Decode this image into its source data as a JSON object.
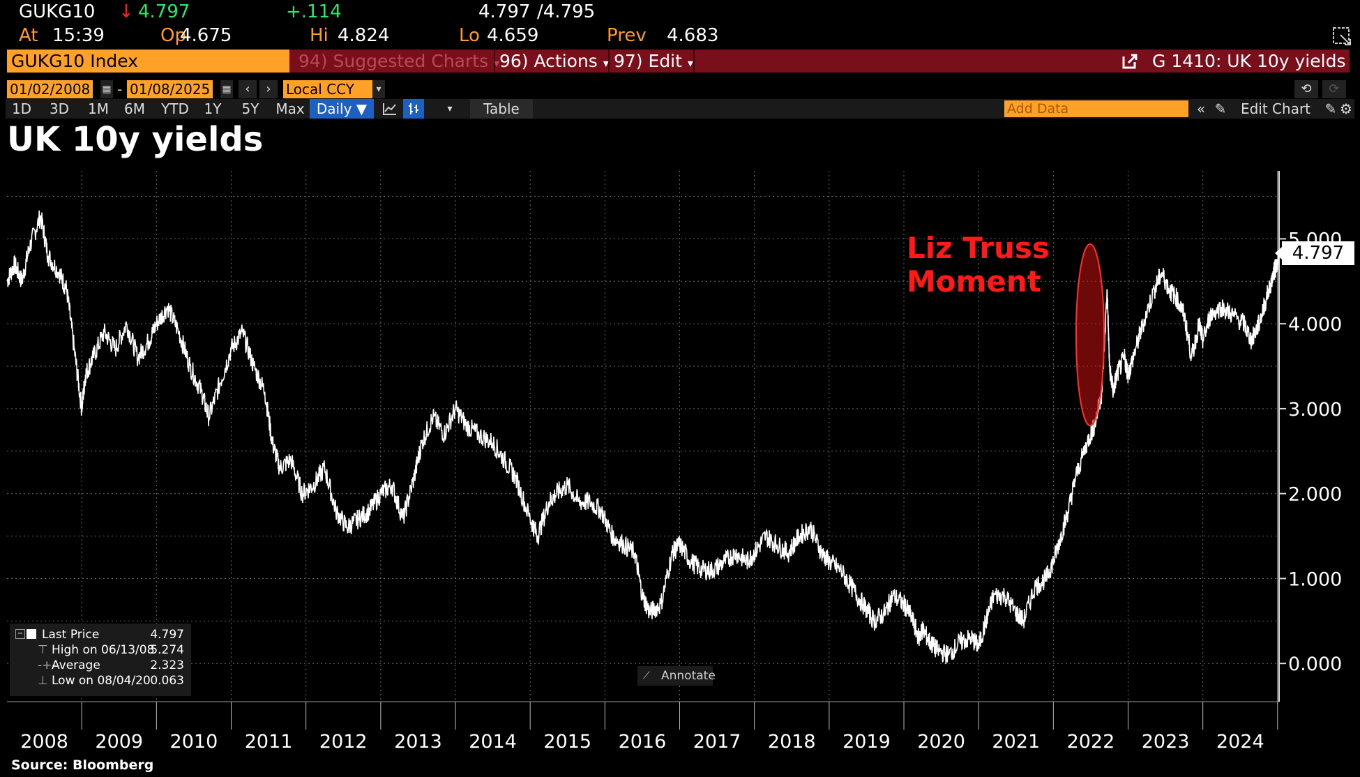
{
  "quote": {
    "ticker": "GUKG10",
    "arrow": "↓",
    "last": "4.797",
    "change": "+.114",
    "bid": "4.797",
    "ask": "/4.795",
    "at_label": "At",
    "at_value": "15:39",
    "op_label": "Op",
    "op_value": "4.675",
    "hi_label": "Hi",
    "hi_value": "4.824",
    "lo_label": "Lo",
    "lo_value": "4.659",
    "prev_label": "Prev",
    "prev_value": "4.683"
  },
  "menubar": {
    "security": "GUKG10 Index",
    "suggested": "94) Suggested Charts",
    "actions": "96) Actions",
    "edit": "97) Edit",
    "chart_title": "G 1410: UK 10y yields"
  },
  "range": {
    "start": "01/02/2008",
    "dash": "-",
    "end": "01/08/2025",
    "currency": "Local CCY"
  },
  "toolbar": {
    "periods": [
      "1D",
      "3D",
      "1M",
      "6M",
      "YTD",
      "1Y",
      "5Y",
      "Max"
    ],
    "frequency": "Daily ▼",
    "table": "Table",
    "add_data_placeholder": "Add Data",
    "edit_chart": "Edit Chart"
  },
  "legend": {
    "last_label": "Last Price",
    "last_value": "4.797",
    "high_label": "High on 06/13/08",
    "high_value": "5.274",
    "avg_label": "Average",
    "avg_value": "2.323",
    "low_label": "Low on 08/04/20",
    "low_value": "0.063"
  },
  "annotate_label": "Annotate",
  "source": "Source:  Bloomberg",
  "colors": {
    "accent": "#ffa126",
    "bar": "#7a0f1c",
    "annotation": "#ff1a1a",
    "line": "#ffffff"
  },
  "chart_data": {
    "type": "line",
    "title": "UK 10y yields",
    "annotation": [
      "Liz Truss",
      "Moment"
    ],
    "last_value_label": "4.797",
    "ylim": [
      -0.45,
      5.8
    ],
    "yticks": [
      0,
      1,
      2,
      3,
      4,
      5
    ],
    "ytick_labels": [
      "0.000",
      "1.000",
      "2.000",
      "3.000",
      "4.000",
      "5.000"
    ],
    "xlim": [
      2008.0,
      2025.02
    ],
    "xtick_labels": [
      "2008",
      "2009",
      "2010",
      "2011",
      "2012",
      "2013",
      "2014",
      "2015",
      "2016",
      "2017",
      "2018",
      "2019",
      "2020",
      "2021",
      "2022",
      "2023",
      "2024"
    ],
    "grid": true,
    "series": [
      {
        "x": [
          2008.0,
          2008.1,
          2008.2,
          2008.3,
          2008.45,
          2008.55,
          2008.7,
          2008.8,
          2008.9,
          2009.0,
          2009.05,
          2009.15,
          2009.3,
          2009.45,
          2009.6,
          2009.75,
          2009.9,
          2010.0,
          2010.15,
          2010.3,
          2010.45,
          2010.6,
          2010.7,
          2010.85,
          2011.0,
          2011.15,
          2011.3,
          2011.45,
          2011.55,
          2011.65,
          2011.8,
          2011.95,
          2012.1,
          2012.25,
          2012.4,
          2012.55,
          2012.7,
          2012.85,
          2013.0,
          2013.15,
          2013.3,
          2013.45,
          2013.55,
          2013.7,
          2013.85,
          2014.0,
          2014.15,
          2014.3,
          2014.5,
          2014.65,
          2014.8,
          2015.0,
          2015.1,
          2015.25,
          2015.35,
          2015.5,
          2015.65,
          2015.8,
          2015.95,
          2016.1,
          2016.25,
          2016.4,
          2016.5,
          2016.6,
          2016.75,
          2016.9,
          2017.0,
          2017.15,
          2017.3,
          2017.45,
          2017.6,
          2017.75,
          2017.9,
          2018.0,
          2018.15,
          2018.3,
          2018.45,
          2018.6,
          2018.75,
          2018.9,
          2019.0,
          2019.15,
          2019.3,
          2019.45,
          2019.6,
          2019.75,
          2019.85,
          2020.0,
          2020.1,
          2020.2,
          2020.25,
          2020.35,
          2020.45,
          2020.6,
          2020.75,
          2020.9,
          2021.0,
          2021.1,
          2021.2,
          2021.35,
          2021.5,
          2021.6,
          2021.75,
          2021.9,
          2022.0,
          2022.1,
          2022.2,
          2022.3,
          2022.45,
          2022.55,
          2022.65,
          2022.72,
          2022.75,
          2022.8,
          2022.85,
          2022.95,
          2023.0,
          2023.1,
          2023.2,
          2023.35,
          2023.45,
          2023.55,
          2023.65,
          2023.75,
          2023.85,
          2023.95,
          2024.0,
          2024.1,
          2024.25,
          2024.4,
          2024.55,
          2024.65,
          2024.75,
          2024.85,
          2024.95,
          2025.02
        ],
        "y": [
          4.5,
          4.7,
          4.5,
          4.9,
          5.27,
          4.8,
          4.6,
          4.4,
          3.7,
          3.0,
          3.4,
          3.6,
          3.9,
          3.7,
          4.0,
          3.6,
          3.8,
          4.0,
          4.2,
          3.9,
          3.5,
          3.2,
          2.9,
          3.3,
          3.7,
          3.9,
          3.5,
          3.2,
          2.6,
          2.3,
          2.4,
          2.0,
          2.1,
          2.3,
          1.8,
          1.6,
          1.7,
          1.8,
          2.0,
          2.1,
          1.7,
          2.2,
          2.6,
          2.9,
          2.7,
          3.0,
          2.8,
          2.7,
          2.6,
          2.4,
          2.2,
          1.7,
          1.5,
          1.9,
          2.0,
          2.1,
          1.9,
          1.9,
          1.8,
          1.5,
          1.4,
          1.3,
          0.8,
          0.6,
          0.7,
          1.3,
          1.4,
          1.2,
          1.1,
          1.1,
          1.2,
          1.3,
          1.2,
          1.3,
          1.5,
          1.4,
          1.3,
          1.5,
          1.6,
          1.3,
          1.2,
          1.1,
          0.9,
          0.7,
          0.5,
          0.6,
          0.8,
          0.7,
          0.55,
          0.3,
          0.4,
          0.25,
          0.15,
          0.1,
          0.25,
          0.3,
          0.2,
          0.5,
          0.8,
          0.8,
          0.6,
          0.5,
          0.9,
          1.0,
          1.2,
          1.5,
          1.8,
          2.2,
          2.6,
          2.8,
          3.2,
          4.4,
          3.5,
          3.2,
          3.4,
          3.6,
          3.4,
          3.7,
          4.0,
          4.4,
          4.6,
          4.4,
          4.3,
          4.1,
          3.6,
          4.0,
          3.8,
          4.1,
          4.2,
          4.1,
          4.0,
          3.8,
          4.0,
          4.3,
          4.6,
          4.797
        ]
      }
    ]
  }
}
